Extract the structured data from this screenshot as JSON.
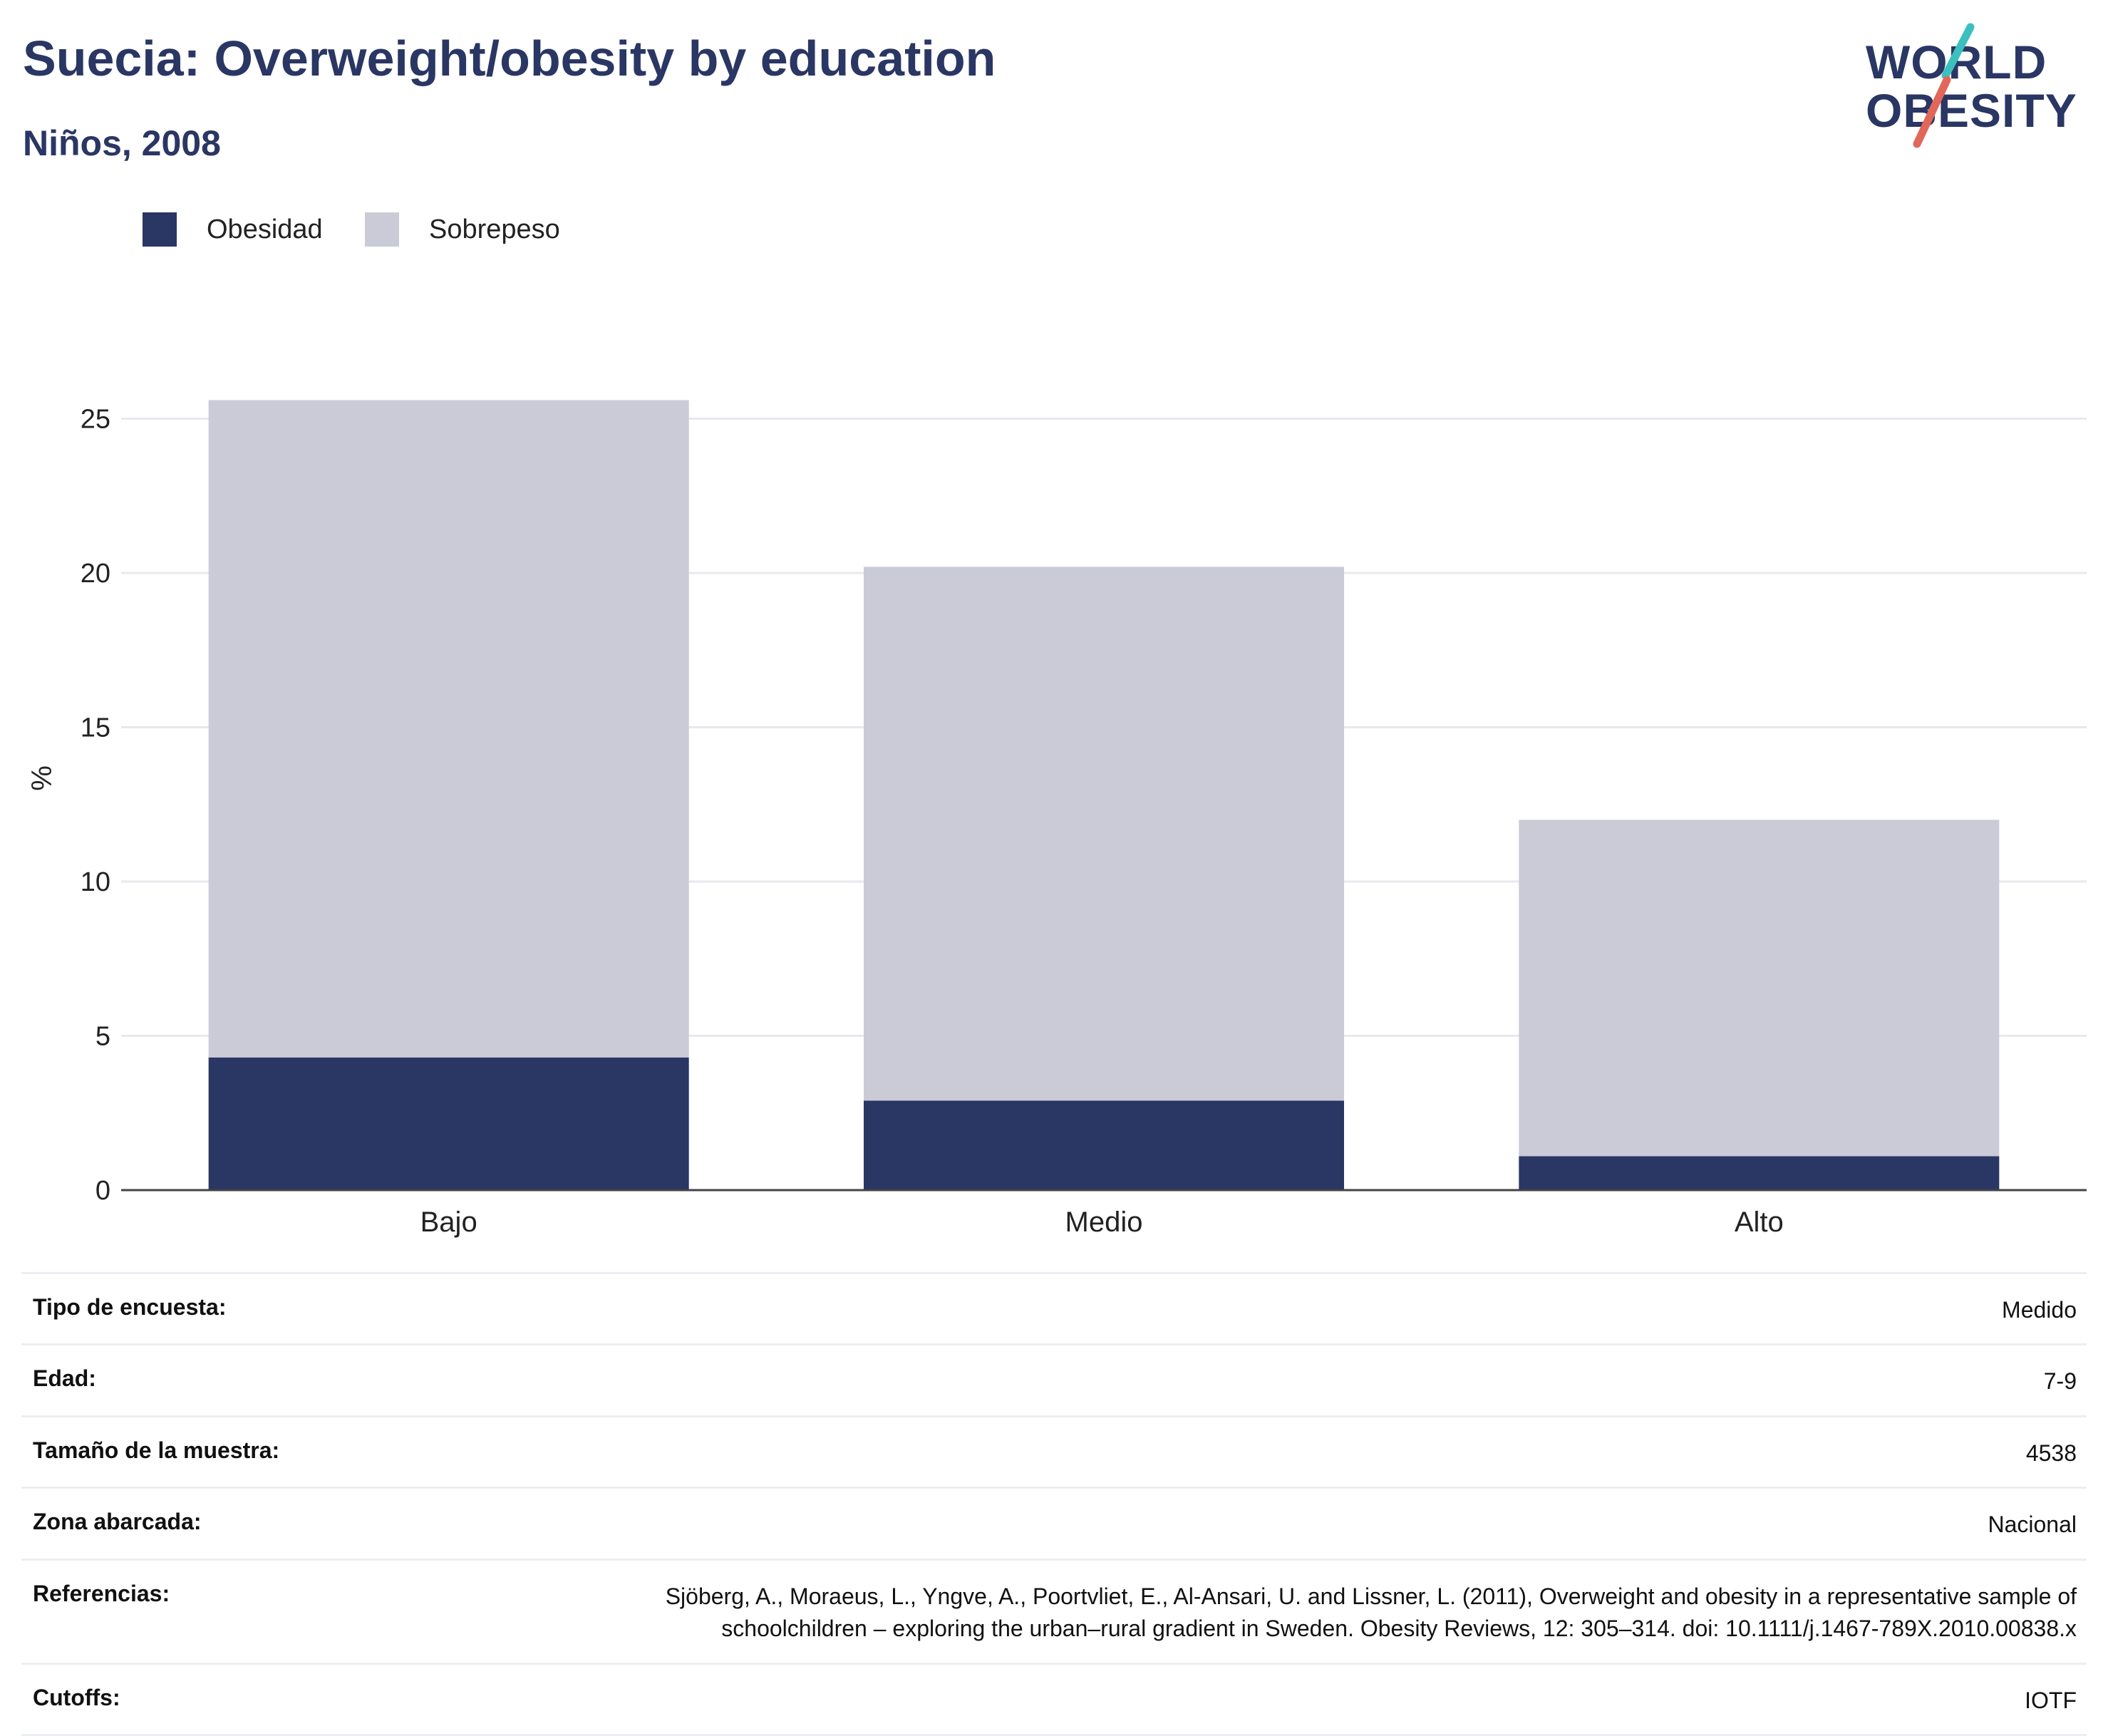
{
  "header": {
    "title": "Suecia: Overweight/obesity by education",
    "subtitle": "Niños, 2008"
  },
  "logo": {
    "line1": "WORLD",
    "line2": "OBESITY",
    "text_color": "#2a3663",
    "accent_teal": "#3bbfbf",
    "accent_coral": "#e0675a"
  },
  "legend": {
    "items": [
      {
        "label": "Obesidad",
        "color": "#2a3663"
      },
      {
        "label": "Sobrepeso",
        "color": "#cacbd7"
      }
    ]
  },
  "chart_data": {
    "type": "bar",
    "stacked": true,
    "categories": [
      "Bajo",
      "Medio",
      "Alto"
    ],
    "series": [
      {
        "name": "Obesidad",
        "values": [
          4.3,
          2.9,
          1.1
        ],
        "color": "#2a3663"
      },
      {
        "name": "Sobrepeso",
        "values": [
          21.3,
          17.3,
          10.9
        ],
        "color": "#cacbd7"
      }
    ],
    "ylabel": "%",
    "xlabel": "",
    "ylim": [
      0,
      27
    ],
    "yticks": [
      0,
      5,
      10,
      15,
      20,
      25
    ],
    "grid": true,
    "legend_position": "top-left"
  },
  "info_table": {
    "rows": [
      {
        "label": "Tipo de encuesta:",
        "value": "Medido"
      },
      {
        "label": "Edad:",
        "value": "7-9"
      },
      {
        "label": "Tamaño de la muestra:",
        "value": "4538"
      },
      {
        "label": "Zona abarcada:",
        "value": "Nacional"
      },
      {
        "label": "Referencias:",
        "value": "Sjöberg, A., Moraeus, L., Yngve, A., Poortvliet, E., Al-Ansari, U. and Lissner, L. (2011), Overweight and obesity in a representative sample of schoolchildren – exploring the urban–rural gradient in Sweden. Obesity Reviews, 12: 305–314. doi: 10.1111/j.1467-789X.2010.00838.x"
      },
      {
        "label": "Cutoffs:",
        "value": "IOTF"
      }
    ]
  }
}
